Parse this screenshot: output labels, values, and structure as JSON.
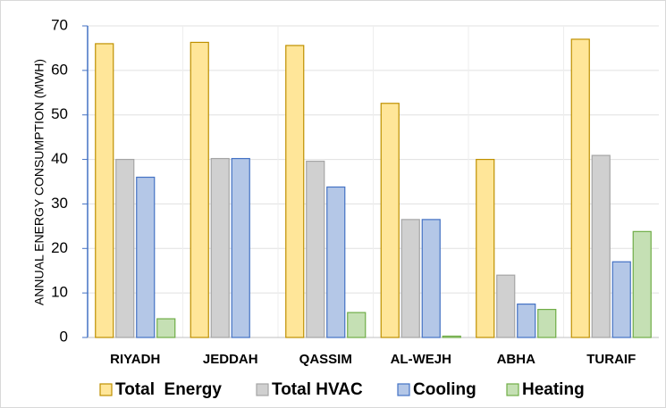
{
  "chart_data": {
    "type": "bar",
    "y_label": "ANNUAL ENERGY CONSUMPTION (MWH)",
    "categories": [
      "RIYADH",
      "JEDDAH",
      "QASSIM",
      "AL-WEJH",
      "ABHA",
      "TURAIF"
    ],
    "series": [
      {
        "name": "Total  Energy",
        "color": "#ffe699",
        "edge": "#bf9000",
        "values": [
          66,
          66.3,
          65.6,
          52.6,
          40,
          67
        ]
      },
      {
        "name": "Total HVAC",
        "color": "#d0d0d0",
        "edge": "#a5a5a5",
        "values": [
          40,
          40.2,
          39.6,
          26.5,
          14,
          40.9
        ]
      },
      {
        "name": "Cooling",
        "color": "#b4c7e7",
        "edge": "#4472c4",
        "values": [
          36,
          40.2,
          33.8,
          26.5,
          7.5,
          17
        ]
      },
      {
        "name": "Heating",
        "color": "#c5e0b4",
        "edge": "#70ad47",
        "values": [
          4.2,
          0,
          5.6,
          0.3,
          6.3,
          23.8
        ]
      }
    ],
    "ylim": [
      0,
      70
    ],
    "yticks": [
      0,
      10,
      20,
      30,
      40,
      50,
      60,
      70
    ],
    "grid": true,
    "legend": "bottom"
  }
}
